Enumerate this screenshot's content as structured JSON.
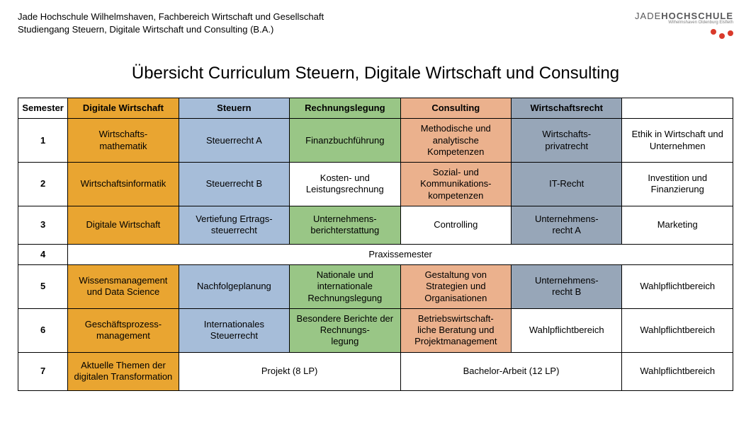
{
  "colors": {
    "orange": "#e9a531",
    "blue": "#a6bdd9",
    "green": "#99c686",
    "peach": "#ebb18d",
    "grey": "#97a6b8",
    "white": "#ffffff"
  },
  "header": {
    "line1": "Jade Hochschule Wilhelmshaven, Fachbereich Wirtschaft und Gesellschaft",
    "line2": "Studiengang Steuern, Digitale Wirtschaft und Consulting (B.A.)",
    "logo_plain": "JADE",
    "logo_bold": "HOCHSCHULE",
    "logo_sub": "Wilhelmshaven Oldenburg Elsfleth"
  },
  "title": "Übersicht Curriculum Steuern, Digitale Wirtschaft und Consulting",
  "columns": {
    "semester": "Semester",
    "c1": "Digitale Wirtschaft",
    "c2": "Steuern",
    "c3": "Rechnungslegung",
    "c4": "Consulting",
    "c5": "Wirtschaftsrecht",
    "c6": ""
  },
  "rows": {
    "1": {
      "sem": "1",
      "c1": "Wirtschafts-\nmathematik",
      "c2": "Steuerrecht A",
      "c3": "Finanzbuchführung",
      "c4": "Methodische und analytische Kompetenzen",
      "c5": "Wirtschafts-\nprivatrecht",
      "c6": "Ethik in Wirtschaft und Unternehmen"
    },
    "2": {
      "sem": "2",
      "c1": "Wirtschaftsinformatik",
      "c2": "Steuerrecht B",
      "c3": "Kosten- und Leistungsrechnung",
      "c4": "Sozial- und Kommunikations-\nkompetenzen",
      "c5": "IT-Recht",
      "c6": "Investition und Finanzierung"
    },
    "3": {
      "sem": "3",
      "c1": "Digitale Wirtschaft",
      "c2": "Vertiefung Ertrags-\nsteuerrecht",
      "c3": "Unternehmens-\nberichterstattung",
      "c4": "Controlling",
      "c5": "Unternehmens-\nrecht A",
      "c6": "Marketing"
    },
    "4": {
      "sem": "4",
      "span": "Praxissemester"
    },
    "5": {
      "sem": "5",
      "c1": "Wissensmanagement und Data Science",
      "c2": "Nachfolgeplanung",
      "c3": "Nationale und internationale Rechnungslegung",
      "c4": "Gestaltung von Strategien und Organisationen",
      "c5": "Unternehmens-\nrecht B",
      "c6": "Wahlpflichtbereich"
    },
    "6": {
      "sem": "6",
      "c1": "Geschäftsprozess-\nmanagement",
      "c2": "Internationales Steuerrecht",
      "c3": "Besondere Berichte der Rechnungs-\nlegung",
      "c4": "Betriebswirtschaft-\nliche Beratung und Projektmanagement",
      "c5": "Wahlpflichtbereich",
      "c6": "Wahlpflichtbereich"
    },
    "7": {
      "sem": "7",
      "c1": "Aktuelle Themen der digitalen Transformation",
      "proj": "Projekt (8 LP)",
      "thesis": "Bachelor-Arbeit (12 LP)",
      "c6": "Wahlpflichtbereich"
    }
  },
  "cell_colors": {
    "head": {
      "c1": "orange",
      "c2": "blue",
      "c3": "green",
      "c4": "peach",
      "c5": "grey",
      "c6": "white",
      "semester": "white"
    },
    "1": {
      "c1": "orange",
      "c2": "blue",
      "c3": "green",
      "c4": "peach",
      "c5": "grey",
      "c6": "white"
    },
    "2": {
      "c1": "orange",
      "c2": "blue",
      "c3": "white",
      "c4": "peach",
      "c5": "grey",
      "c6": "white"
    },
    "3": {
      "c1": "orange",
      "c2": "blue",
      "c3": "green",
      "c4": "white",
      "c5": "grey",
      "c6": "white"
    },
    "5": {
      "c1": "orange",
      "c2": "blue",
      "c3": "green",
      "c4": "peach",
      "c5": "grey",
      "c6": "white"
    },
    "6": {
      "c1": "orange",
      "c2": "blue",
      "c3": "green",
      "c4": "peach",
      "c5": "white",
      "c6": "white"
    },
    "7": {
      "c1": "orange",
      "proj": "white",
      "thesis": "white",
      "c6": "white"
    }
  }
}
